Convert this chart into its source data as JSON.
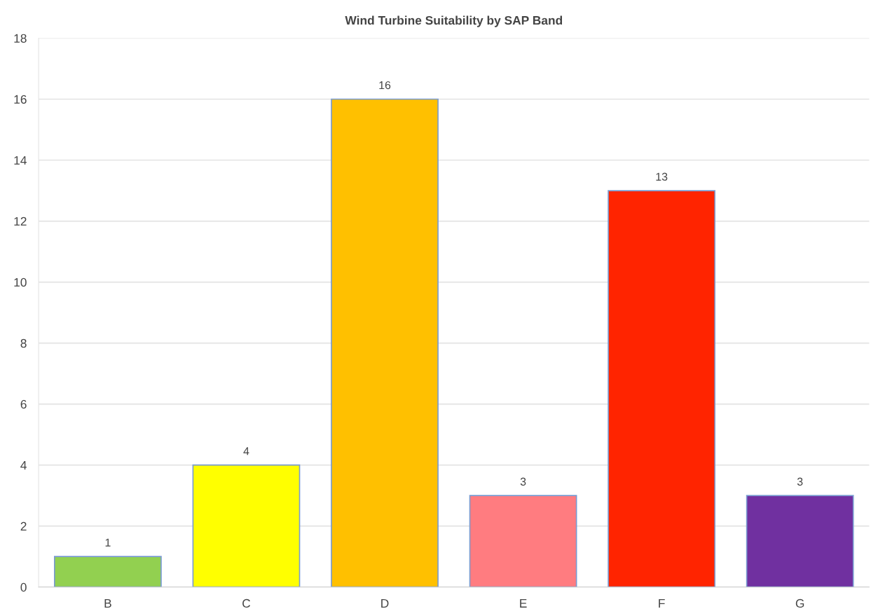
{
  "chart_data": {
    "type": "bar",
    "title": "Wind Turbine Suitability by SAP Band",
    "categories": [
      "B",
      "C",
      "D",
      "E",
      "F",
      "G"
    ],
    "values": [
      1,
      4,
      16,
      3,
      13,
      3
    ],
    "colors": [
      "#92d050",
      "#ffff00",
      "#ffc000",
      "#ff7c80",
      "#ff2400",
      "#7030a0"
    ],
    "ylim": [
      0,
      18
    ],
    "yticks": [
      0,
      2,
      4,
      6,
      8,
      10,
      12,
      14,
      16,
      18
    ],
    "grid": "y",
    "data_labels": true
  }
}
